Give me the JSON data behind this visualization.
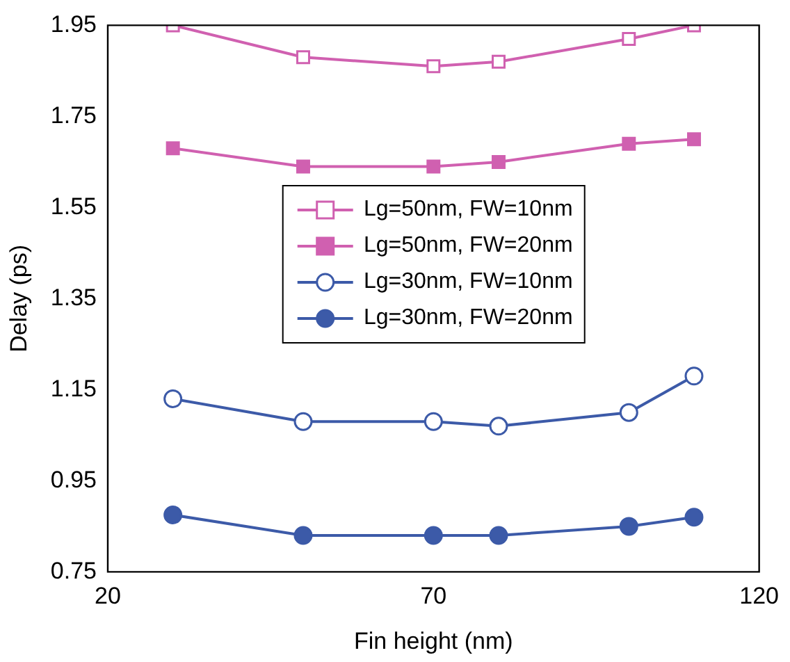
{
  "chart_data": {
    "type": "line",
    "xlabel": "Fin height (nm)",
    "ylabel": "Delay (ps)",
    "x": [
      30,
      50,
      70,
      80,
      100,
      110
    ],
    "xlim": [
      20,
      120
    ],
    "xticks": [
      20,
      70,
      120
    ],
    "ylim": [
      0.75,
      1.95
    ],
    "yticks": [
      0.75,
      0.95,
      1.15,
      1.35,
      1.55,
      1.75,
      1.95
    ],
    "grid": false,
    "legend": "center",
    "line_style": "solid",
    "series": [
      {
        "name": "Lg=50nm, FW=10nm",
        "color": "#d060b0",
        "marker": "square-open",
        "values": [
          1.95,
          1.88,
          1.86,
          1.87,
          1.92,
          1.95
        ]
      },
      {
        "name": "Lg=50nm, FW=20nm",
        "color": "#d060b0",
        "marker": "square",
        "values": [
          1.68,
          1.64,
          1.64,
          1.65,
          1.69,
          1.7
        ]
      },
      {
        "name": "Lg=30nm, FW=10nm",
        "color": "#3c5aa8",
        "marker": "circle-open",
        "values": [
          1.13,
          1.08,
          1.08,
          1.07,
          1.1,
          1.18
        ]
      },
      {
        "name": "Lg=30nm, FW=20nm",
        "color": "#3c5aa8",
        "marker": "circle",
        "values": [
          0.875,
          0.83,
          0.83,
          0.83,
          0.85,
          0.87
        ]
      }
    ]
  }
}
